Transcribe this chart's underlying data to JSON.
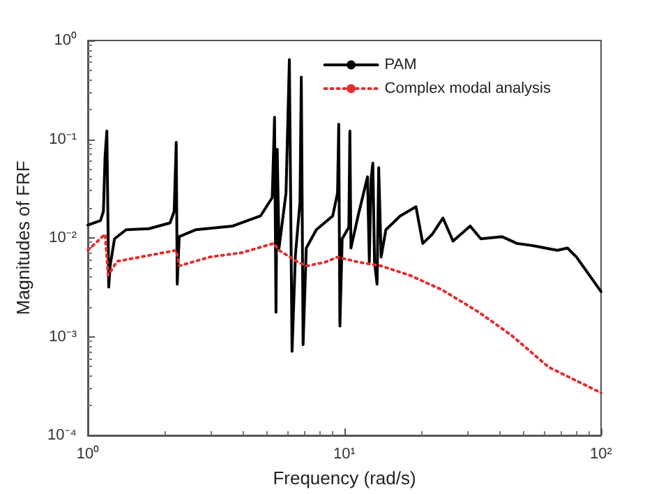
{
  "chart_data": {
    "type": "line",
    "xlabel": "Frequency (rad/s)",
    "ylabel": "Magnitudes of FRF",
    "log": "xy",
    "grid": false,
    "legend": "top right",
    "marker": "none",
    "xlim": [
      1,
      100
    ],
    "xticks": [
      {
        "value": 1,
        "label": "10⁰"
      },
      {
        "value": 10,
        "label": "10¹"
      },
      {
        "value": 100,
        "label": "10²"
      }
    ],
    "ylim": [
      0.0001,
      1
    ],
    "yticks": [
      {
        "value": 0.0001,
        "label": "10⁻⁴"
      },
      {
        "value": 0.001,
        "label": "10⁻³"
      },
      {
        "value": 0.01,
        "label": "10⁻²"
      },
      {
        "value": 0.1,
        "label": "10⁻¹"
      },
      {
        "value": 1,
        "label": "10⁰"
      }
    ],
    "series": [
      {
        "name": "PAM",
        "color": "#000000",
        "line_style": "solid",
        "x": [
          1,
          1.12,
          1.15,
          1.167,
          1.186,
          1.196,
          1.206,
          1.22,
          1.27,
          1.41,
          1.73,
          2.09,
          2.17,
          2.21,
          2.23,
          2.27,
          2.63,
          3.67,
          4.71,
          5.23,
          5.34,
          5.41,
          5.47,
          5.56,
          5.92,
          6.1,
          6.25,
          6.44,
          6.71,
          6.79,
          6.9,
          7.1,
          7.77,
          9.0,
          9.4,
          9.5,
          9.6,
          9.8,
          10.4,
          10.5,
          10.6,
          11.3,
          12.3,
          12.5,
          12.7,
          12.9,
          13.1,
          13.4,
          13.6,
          13.9,
          14.5,
          16.5,
          19.0,
          20.2,
          22.0,
          24.2,
          26.5,
          30.9,
          34.0,
          41.1,
          47.0,
          55.0,
          67.6,
          74.0,
          80.2,
          100
        ],
        "values": [
          0.0135,
          0.015,
          0.0186,
          0.067,
          0.121,
          0.02,
          0.00318,
          0.0051,
          0.0098,
          0.0121,
          0.0124,
          0.0142,
          0.0186,
          0.093,
          0.0034,
          0.0103,
          0.0121,
          0.0132,
          0.0167,
          0.0256,
          0.167,
          0.00177,
          0.079,
          0.0079,
          0.0286,
          0.638,
          0.00071,
          0.0067,
          0.023,
          0.425,
          0.00083,
          0.0079,
          0.0121,
          0.0167,
          0.0286,
          0.142,
          0.00128,
          0.0098,
          0.0128,
          0.121,
          0.0079,
          0.0167,
          0.0416,
          0.0057,
          0.0395,
          0.0573,
          0.0057,
          0.0034,
          0.0515,
          0.0064,
          0.0121,
          0.0167,
          0.0207,
          0.0088,
          0.0109,
          0.0159,
          0.0093,
          0.0132,
          0.0098,
          0.0103,
          0.0088,
          0.0083,
          0.0075,
          0.0079,
          0.0064,
          0.00286
        ]
      },
      {
        "name": "Complex modal analysis",
        "color": "#e03030",
        "line_style": "dotted",
        "x": [
          1,
          1.167,
          1.2,
          1.3,
          1.6,
          2.21,
          2.27,
          2.98,
          3.99,
          5.3,
          5.56,
          6.58,
          7.14,
          8.44,
          9.4,
          11.3,
          13.9,
          17.9,
          23.9,
          33.4,
          44.8,
          62.6,
          100
        ],
        "values": [
          0.0075,
          0.0109,
          0.0042,
          0.0058,
          0.0064,
          0.0075,
          0.0052,
          0.0064,
          0.0071,
          0.0088,
          0.0075,
          0.0057,
          0.0052,
          0.0057,
          0.0064,
          0.0057,
          0.0052,
          0.0042,
          0.003,
          0.00177,
          0.00103,
          0.00049,
          0.00027
        ]
      }
    ]
  }
}
